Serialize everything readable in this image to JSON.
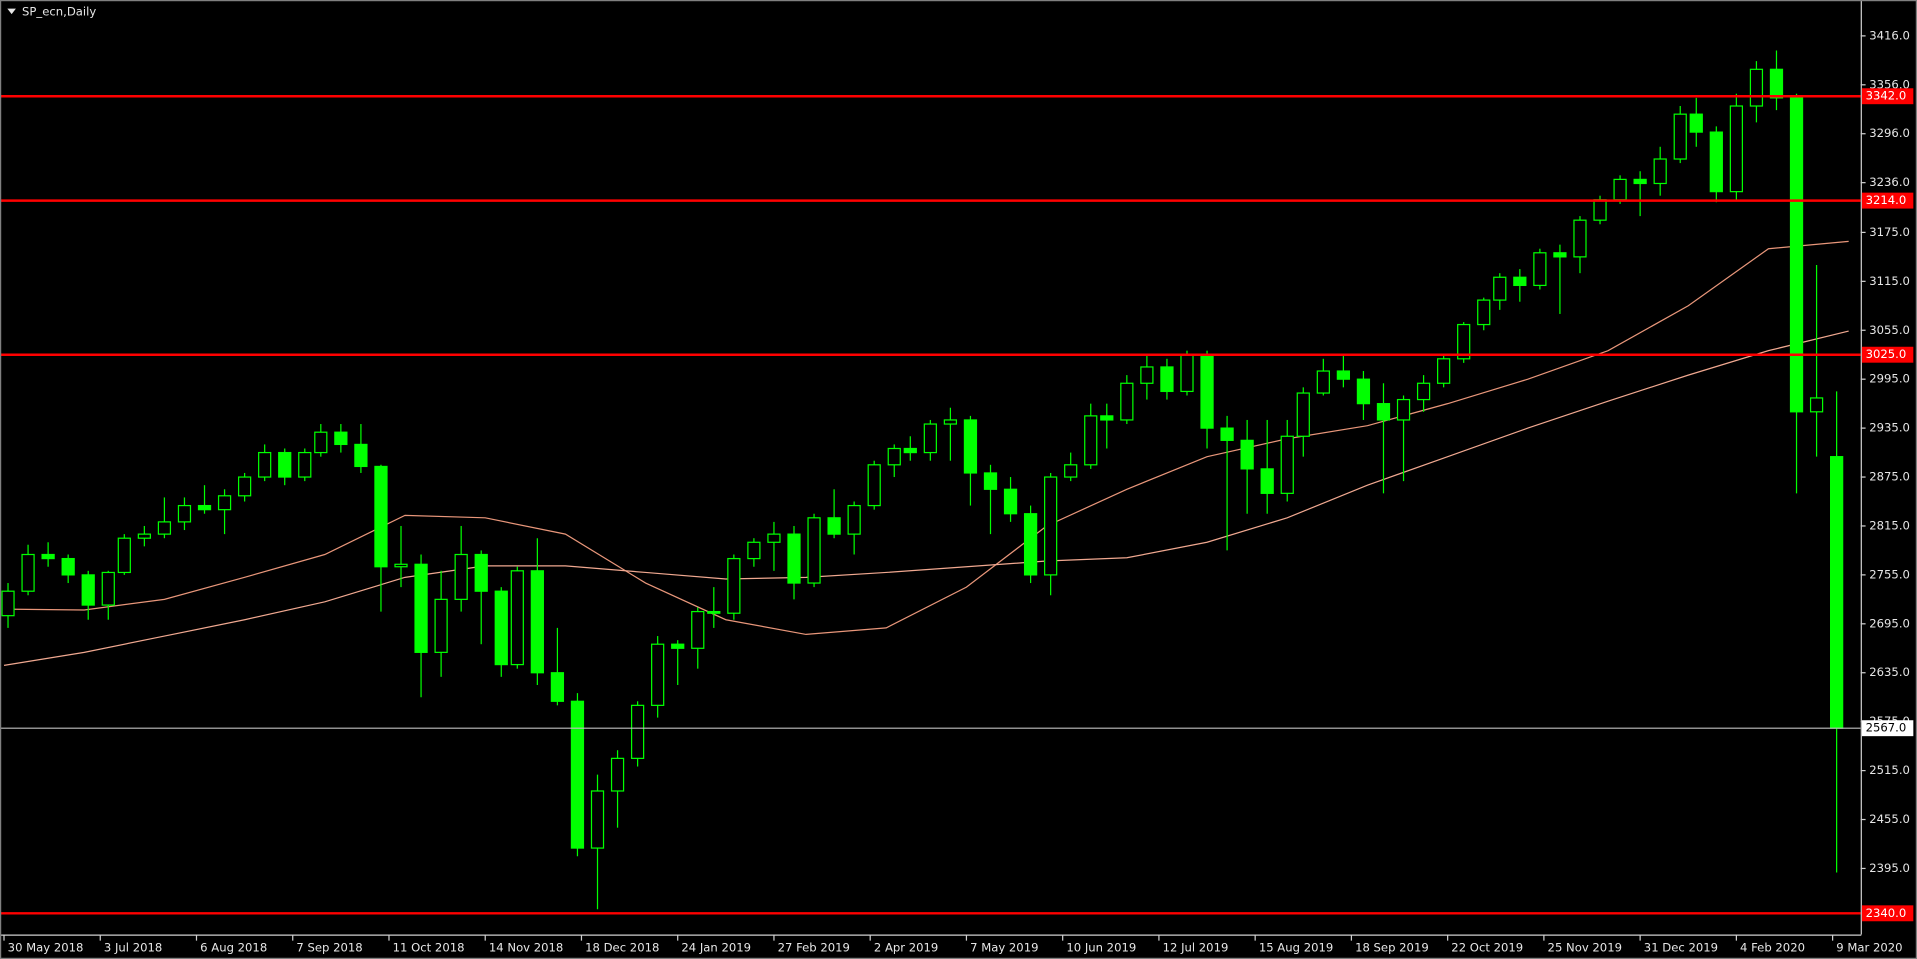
{
  "chart_data": {
    "type": "candlestick",
    "title": "SP_ecn,Daily",
    "color": "#00ff00",
    "background": "#000000",
    "x": [
      1,
      6,
      11,
      16,
      21,
      26,
      30,
      35,
      40,
      45,
      50,
      55,
      60,
      65,
      70,
      75,
      79,
      84,
      89,
      94,
      99,
      104,
      109,
      114,
      119,
      124,
      128,
      133,
      138,
      143,
      148,
      153,
      158,
      163,
      168,
      173,
      177,
      182,
      187,
      192,
      197,
      202,
      207,
      212,
      217,
      222,
      226,
      231,
      236,
      241,
      246,
      251,
      256,
      261,
      266,
      271,
      275,
      280,
      285,
      290,
      295,
      300,
      305,
      310,
      315,
      320,
      324,
      329,
      334,
      339,
      344,
      349,
      354,
      359,
      364,
      369,
      373,
      378,
      383,
      388,
      393,
      398,
      403,
      408,
      413,
      418,
      422,
      427,
      432,
      437,
      442,
      447,
      452,
      457
    ],
    "open": [
      2705,
      2735,
      2780,
      2775,
      2755,
      2718,
      2758,
      2800,
      2805,
      2820,
      2840,
      2835,
      2852,
      2875,
      2905,
      2875,
      2905,
      2930,
      2915,
      2888,
      2765,
      2768,
      2660,
      2725,
      2780,
      2735,
      2645,
      2760,
      2635,
      2600,
      2420,
      2490,
      2530,
      2595,
      2670,
      2665,
      2710,
      2708,
      2775,
      2795,
      2805,
      2745,
      2825,
      2805,
      2840,
      2890,
      2910,
      2905,
      2940,
      2945,
      2880,
      2860,
      2830,
      2755,
      2875,
      2890,
      2950,
      2945,
      2990,
      3010,
      2980,
      3025,
      2935,
      2920,
      2885,
      2855,
      2925,
      2978,
      3005,
      2995,
      2965,
      2945,
      2970,
      2990,
      3020,
      3062,
      3092,
      3120,
      3110,
      3150,
      3145,
      3190,
      3215,
      3240,
      3235,
      3265,
      3320,
      3298,
      3225,
      3330,
      3375,
      3340,
      2955,
      2900
    ],
    "high": [
      2745,
      2792,
      2795,
      2780,
      2760,
      2760,
      2805,
      2815,
      2850,
      2850,
      2865,
      2860,
      2880,
      2915,
      2910,
      2910,
      2940,
      2940,
      2940,
      2890,
      2815,
      2780,
      2760,
      2815,
      2785,
      2740,
      2765,
      2800,
      2690,
      2610,
      2510,
      2540,
      2600,
      2680,
      2675,
      2715,
      2740,
      2780,
      2800,
      2820,
      2815,
      2830,
      2860,
      2845,
      2895,
      2915,
      2925,
      2945,
      2960,
      2950,
      2890,
      2875,
      2840,
      2880,
      2905,
      2965,
      2965,
      3000,
      3025,
      3020,
      3030,
      3030,
      2950,
      2945,
      2945,
      2945,
      2985,
      3020,
      3025,
      3005,
      2990,
      2975,
      3000,
      3025,
      3065,
      3095,
      3125,
      3130,
      3155,
      3160,
      3195,
      3220,
      3245,
      3250,
      3280,
      3330,
      3340,
      3305,
      3345,
      3385,
      3398,
      3345,
      3135,
      2980
    ],
    "low": [
      2690,
      2730,
      2765,
      2745,
      2700,
      2700,
      2755,
      2790,
      2800,
      2810,
      2830,
      2805,
      2845,
      2870,
      2865,
      2870,
      2900,
      2905,
      2880,
      2710,
      2740,
      2605,
      2630,
      2710,
      2670,
      2630,
      2640,
      2620,
      2595,
      2410,
      2345,
      2445,
      2520,
      2580,
      2620,
      2640,
      2690,
      2700,
      2765,
      2760,
      2725,
      2740,
      2800,
      2780,
      2835,
      2875,
      2895,
      2895,
      2895,
      2840,
      2805,
      2820,
      2745,
      2730,
      2870,
      2885,
      2910,
      2940,
      2970,
      2970,
      2975,
      2910,
      2785,
      2830,
      2830,
      2845,
      2900,
      2975,
      2985,
      2945,
      2855,
      2870,
      2955,
      2985,
      3015,
      3055,
      3080,
      3090,
      3105,
      3075,
      3125,
      3185,
      3210,
      3195,
      3220,
      3260,
      3280,
      3212,
      3215,
      3310,
      3325,
      2855,
      2900,
      2390
    ],
    "close": [
      2735,
      2780,
      2775,
      2755,
      2718,
      2758,
      2800,
      2805,
      2820,
      2840,
      2835,
      2852,
      2875,
      2905,
      2875,
      2905,
      2930,
      2915,
      2888,
      2765,
      2768,
      2660,
      2725,
      2780,
      2735,
      2645,
      2760,
      2635,
      2600,
      2420,
      2490,
      2530,
      2595,
      2670,
      2665,
      2710,
      2708,
      2775,
      2795,
      2805,
      2745,
      2825,
      2805,
      2840,
      2890,
      2910,
      2905,
      2940,
      2945,
      2880,
      2860,
      2830,
      2755,
      2875,
      2890,
      2950,
      2945,
      2990,
      3010,
      2980,
      3025,
      2935,
      2920,
      2885,
      2855,
      2925,
      2978,
      3005,
      2995,
      2965,
      2945,
      2970,
      2990,
      3020,
      3062,
      3092,
      3120,
      3110,
      3150,
      3145,
      3190,
      3215,
      3240,
      3235,
      3265,
      3320,
      3298,
      3225,
      3330,
      3375,
      3340,
      2955,
      2972,
      2567
    ],
    "moving_averages": [
      {
        "color": "#e8967a",
        "x": [
          0,
          20,
          40,
          60,
          80,
          100,
          120,
          140,
          160,
          180,
          200,
          220,
          240,
          260,
          280,
          300,
          320,
          340,
          360,
          380,
          400,
          420,
          440,
          460
        ],
        "values": [
          2713,
          2712,
          2725,
          2752,
          2780,
          2828,
          2825,
          2805,
          2745,
          2700,
          2682,
          2690,
          2740,
          2815,
          2860,
          2900,
          2922,
          2938,
          2965,
          2995,
          3030,
          3085,
          3155,
          3164
        ]
      },
      {
        "color": "#f0a890",
        "x": [
          0,
          20,
          40,
          60,
          80,
          100,
          120,
          140,
          160,
          180,
          200,
          220,
          240,
          260,
          280,
          300,
          320,
          340,
          360,
          380,
          400,
          420,
          440,
          460
        ],
        "values": [
          2644,
          2660,
          2680,
          2700,
          2722,
          2752,
          2766,
          2766,
          2758,
          2750,
          2752,
          2758,
          2765,
          2772,
          2776,
          2795,
          2825,
          2865,
          2900,
          2935,
          2968,
          3000,
          3030,
          3054
        ]
      }
    ],
    "levels": [
      {
        "value": 3342,
        "label": "3342.0"
      },
      {
        "value": 3214,
        "label": "3214.0"
      },
      {
        "value": 3025,
        "label": "3025.0"
      },
      {
        "value": 2340,
        "label": "2340.0"
      }
    ],
    "level_color": "#ff0000",
    "last_price": {
      "value": 2567,
      "label": "2567.0"
    },
    "last_price_color": "#c0c0c0",
    "xlim": [
      -1,
      463
    ],
    "ylim": [
      2314,
      3457
    ],
    "xticks": [
      {
        "value": 0,
        "label": "30 May 2018"
      },
      {
        "value": 24,
        "label": "3 Jul 2018"
      },
      {
        "value": 48,
        "label": "6 Aug 2018"
      },
      {
        "value": 72,
        "label": "7 Sep 2018"
      },
      {
        "value": 96,
        "label": "11 Oct 2018"
      },
      {
        "value": 120,
        "label": "14 Nov 2018"
      },
      {
        "value": 144,
        "label": "18 Dec 2018"
      },
      {
        "value": 168,
        "label": "24 Jan 2019"
      },
      {
        "value": 192,
        "label": "27 Feb 2019"
      },
      {
        "value": 216,
        "label": "2 Apr 2019"
      },
      {
        "value": 240,
        "label": "7 May 2019"
      },
      {
        "value": 264,
        "label": "10 Jun 2019"
      },
      {
        "value": 288,
        "label": "12 Jul 2019"
      },
      {
        "value": 312,
        "label": "15 Aug 2019"
      },
      {
        "value": 336,
        "label": "18 Sep 2019"
      },
      {
        "value": 360,
        "label": "22 Oct 2019"
      },
      {
        "value": 384,
        "label": "25 Nov 2019"
      },
      {
        "value": 408,
        "label": "31 Dec 2019"
      },
      {
        "value": 432,
        "label": "4 Feb 2020"
      },
      {
        "value": 456,
        "label": "9 Mar 2020"
      }
    ],
    "yticks": [
      {
        "value": 3416,
        "label": "3416.0"
      },
      {
        "value": 3356,
        "label": "3356.0"
      },
      {
        "value": 3296,
        "label": "3296.0"
      },
      {
        "value": 3236,
        "label": "3236.0"
      },
      {
        "value": 3175,
        "label": "3175.0"
      },
      {
        "value": 3115,
        "label": "3115.0"
      },
      {
        "value": 3055,
        "label": "3055.0"
      },
      {
        "value": 2995,
        "label": "2995.0"
      },
      {
        "value": 2935,
        "label": "2935.0"
      },
      {
        "value": 2875,
        "label": "2875.0"
      },
      {
        "value": 2815,
        "label": "2815.0"
      },
      {
        "value": 2755,
        "label": "2755.0"
      },
      {
        "value": 2695,
        "label": "2695.0"
      },
      {
        "value": 2635,
        "label": "2635.0"
      },
      {
        "value": 2575,
        "label": "2575.0"
      },
      {
        "value": 2515,
        "label": "2515.0"
      },
      {
        "value": 2455,
        "label": "2455.0"
      },
      {
        "value": 2395,
        "label": "2395.0"
      }
    ],
    "grid": false
  }
}
